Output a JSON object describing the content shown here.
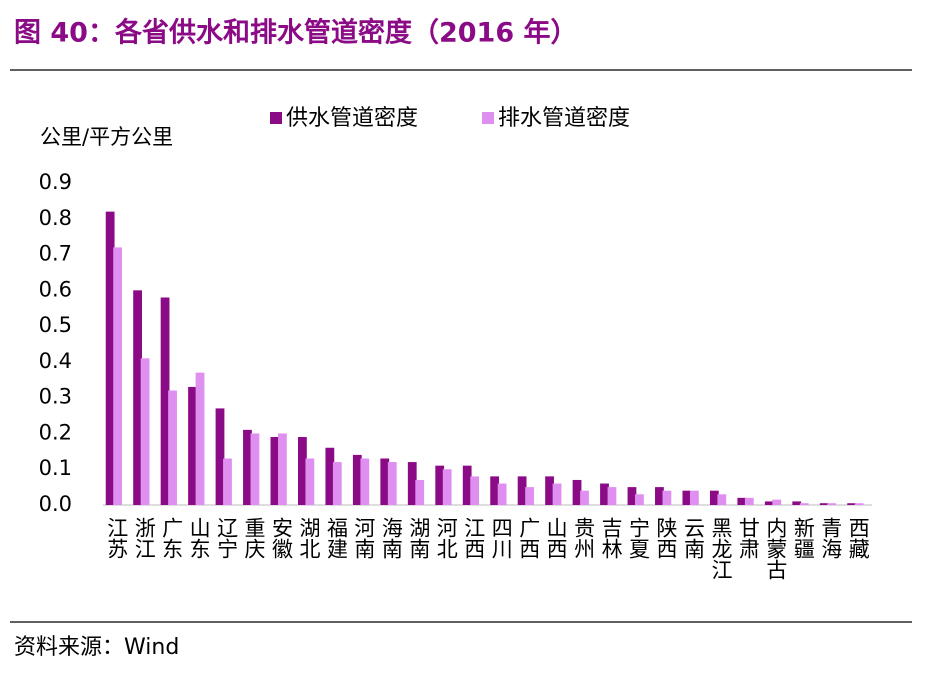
{
  "header": {
    "title": "图 40：各省供水和排水管道密度（2016 年）"
  },
  "chart_data": {
    "type": "bar",
    "y_label": "公里/平方公里",
    "categories": [
      "江苏",
      "浙江",
      "广东",
      "山东",
      "辽宁",
      "重庆",
      "安徽",
      "湖北",
      "福建",
      "河南",
      "海南",
      "湖南",
      "河北",
      "江西",
      "四川",
      "广西",
      "山西",
      "贵州",
      "吉林",
      "宁夏",
      "陕西",
      "云南",
      "黑龙江",
      "甘肃",
      "内蒙古",
      "新疆",
      "青海",
      "西藏"
    ],
    "series": [
      {
        "name": "供水管道密度",
        "color": "#8b0a86",
        "values": [
          0.82,
          0.6,
          0.58,
          0.33,
          0.27,
          0.21,
          0.19,
          0.19,
          0.16,
          0.14,
          0.13,
          0.12,
          0.11,
          0.11,
          0.08,
          0.08,
          0.08,
          0.07,
          0.06,
          0.05,
          0.05,
          0.04,
          0.04,
          0.02,
          0.01,
          0.01,
          0.005,
          0.005
        ]
      },
      {
        "name": "排水管道密度",
        "color": "#df8ff0",
        "values": [
          0.72,
          0.41,
          0.32,
          0.37,
          0.13,
          0.2,
          0.2,
          0.13,
          0.12,
          0.13,
          0.12,
          0.07,
          0.1,
          0.08,
          0.06,
          0.05,
          0.06,
          0.04,
          0.05,
          0.03,
          0.04,
          0.04,
          0.03,
          0.02,
          0.015,
          0.005,
          0.005,
          0.005
        ]
      }
    ],
    "ylim": [
      0,
      0.9
    ],
    "yticks": [
      {
        "value": 0,
        "label": "0.0"
      },
      0.1,
      0.2,
      0.3,
      0.4,
      0.5,
      0.6,
      0.7,
      0.8,
      0.9
    ]
  },
  "footer": {
    "source": "资料来源：Wind"
  }
}
